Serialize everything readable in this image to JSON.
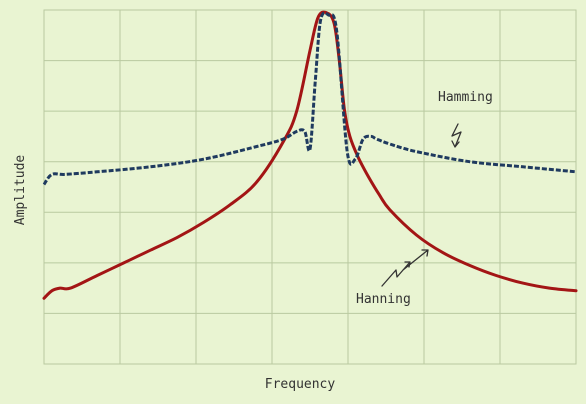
{
  "chart_data": {
    "type": "line",
    "title": "",
    "xlabel": "Frequency",
    "ylabel": "Amplitude",
    "xlim": [
      0,
      20
    ],
    "ylim": [
      0,
      7
    ],
    "grid": true,
    "legend": "none",
    "colors": {
      "background": "#e9f4d2",
      "grid": "#b9c9a0",
      "Hamming": "#1f3a5f",
      "Hanning": "#a31515"
    },
    "annotations": [
      {
        "text": "Hamming",
        "series": "Hamming"
      },
      {
        "text": "Hanning",
        "series": "Hanning"
      }
    ],
    "series": [
      {
        "name": "Hamming",
        "style": "dashed",
        "x": [
          0,
          0.3,
          0.8,
          2,
          4,
          6,
          8,
          9,
          9.5,
          9.8,
          10.0,
          10.2,
          10.4,
          10.7,
          11.0,
          11.4,
          11.7,
          12.0,
          12.3,
          12.5,
          13,
          14,
          16,
          18,
          20
        ],
        "y": [
          3.55,
          3.75,
          3.75,
          3.8,
          3.9,
          4.05,
          4.3,
          4.45,
          4.6,
          4.6,
          4.25,
          5.6,
          6.8,
          6.9,
          6.6,
          4.2,
          4.05,
          4.45,
          4.5,
          4.45,
          4.35,
          4.2,
          4.0,
          3.9,
          3.8
        ]
      },
      {
        "name": "Hanning",
        "style": "solid",
        "x": [
          0,
          0.3,
          0.6,
          1,
          2,
          3,
          4,
          5,
          6,
          7,
          8,
          9,
          9.5,
          10,
          10.3,
          10.6,
          10.9,
          11.1,
          11.3,
          11.5,
          11.8,
          12.2,
          12.6,
          13,
          14,
          15,
          16,
          17,
          18,
          19,
          20
        ],
        "y": [
          1.3,
          1.45,
          1.5,
          1.5,
          1.75,
          2.0,
          2.25,
          2.5,
          2.8,
          3.15,
          3.6,
          4.4,
          5.0,
          6.2,
          6.85,
          6.95,
          6.75,
          6.0,
          5.0,
          4.5,
          4.1,
          3.7,
          3.35,
          3.05,
          2.55,
          2.2,
          1.95,
          1.75,
          1.6,
          1.5,
          1.45
        ]
      }
    ]
  }
}
